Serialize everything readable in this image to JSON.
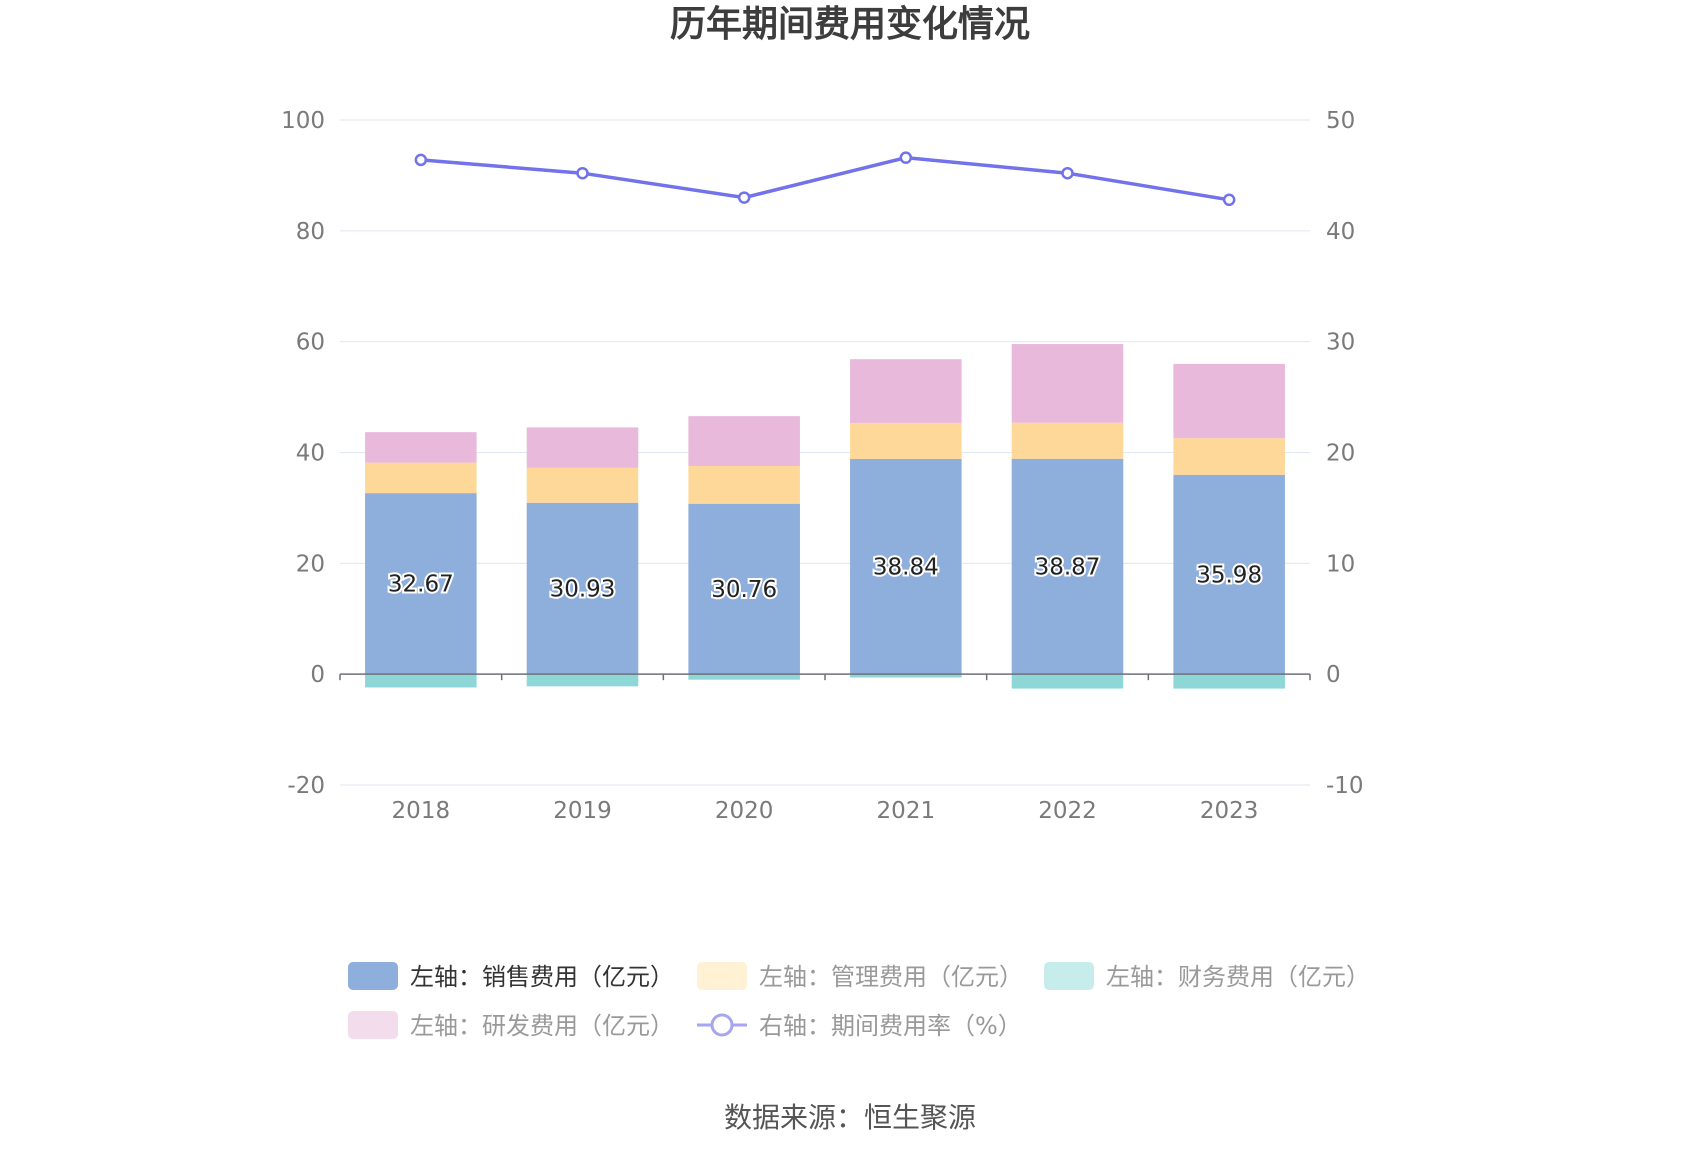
{
  "chart_data": {
    "type": "bar",
    "title": "历年期间费用变化情况",
    "categories": [
      "2018",
      "2019",
      "2020",
      "2021",
      "2022",
      "2023"
    ],
    "left_axis": {
      "min": -20,
      "max": 100,
      "ticks": [
        "100",
        "80",
        "60",
        "40",
        "20",
        "0",
        "-20"
      ]
    },
    "right_axis": {
      "min": -10,
      "max": 50,
      "ticks": [
        "50",
        "40",
        "30",
        "20",
        "10",
        "0",
        "-10"
      ]
    },
    "series": [
      {
        "name": "左轴：销售费用（亿元）",
        "axis": "left",
        "kind": "bar",
        "stack": true,
        "color": "#8eaedb",
        "values": [
          32.67,
          30.93,
          30.76,
          38.84,
          38.87,
          35.98
        ],
        "labels": [
          "32.67",
          "30.93",
          "30.76",
          "38.84",
          "38.87",
          "35.98"
        ]
      },
      {
        "name": "左轴：管理费用（亿元）",
        "axis": "left",
        "kind": "bar",
        "stack": true,
        "color": "#fed898",
        "values": [
          5.5,
          6.3,
          6.8,
          6.5,
          6.5,
          6.6
        ]
      },
      {
        "name": "左轴：财务费用（亿元）",
        "axis": "left",
        "kind": "bar",
        "stack": true,
        "color": "#8dd8d7",
        "values": [
          -2.4,
          -2.2,
          -1.0,
          -0.6,
          -2.6,
          -2.6
        ]
      },
      {
        "name": "左轴：研发费用（亿元）",
        "axis": "left",
        "kind": "bar",
        "stack": true,
        "color": "#e8b9da",
        "values": [
          5.5,
          7.3,
          9.0,
          11.5,
          14.2,
          13.4
        ]
      },
      {
        "name": "右轴：期间费用率（%）",
        "axis": "right",
        "kind": "line",
        "color": "#7272ea",
        "values": [
          46.4,
          45.2,
          43.0,
          46.6,
          45.2,
          42.8
        ]
      }
    ],
    "legend_position": "bottom",
    "grid": true,
    "source": "数据来源：恒生聚源"
  }
}
